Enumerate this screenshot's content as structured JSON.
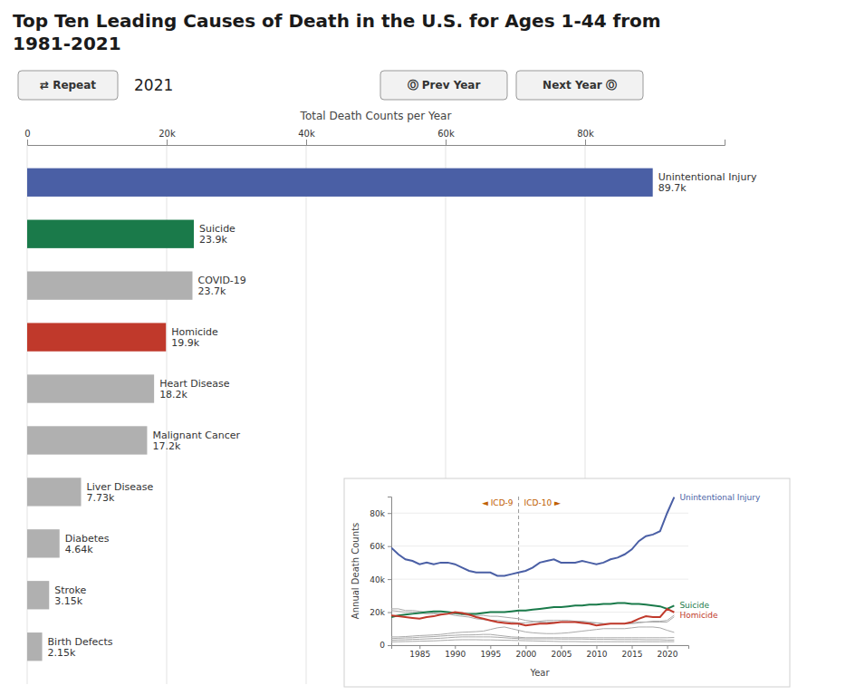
{
  "chart_data": [
    {
      "type": "bar",
      "orientation": "horizontal",
      "title": "Top Ten Leading Causes of Death in the U.S. for Ages 1-44 from\n1981-2021",
      "annotations": [
        "⇄  Repeat",
        "2021",
        "Ⓞ Prev Year",
        "Next Year Ⓞ"
      ],
      "xlabel": "Total Death Counts per Year",
      "categories": [
        "Unintentional Injury",
        "Suicide",
        "COVID-19",
        "Homicide",
        "Heart Disease",
        "Malignant Cancer",
        "Liver Disease",
        "Diabetes",
        "Stroke",
        "Birth Defects"
      ],
      "values": [
        89700,
        23900,
        23700,
        19900,
        18200,
        17200,
        7730,
        4640,
        3150,
        2150
      ],
      "value_labels": [
        "89.7k",
        "23.9k",
        "23.7k",
        "19.9k",
        "18.2k",
        "17.2k",
        "7.73k",
        "4.64k",
        "3.15k",
        "2.15k"
      ],
      "data_labels": true,
      "colors": [
        "#4a5fa5",
        "#1a7a4a",
        "#b0b0b0",
        "#c0392b",
        "#b0b0b0",
        "#b0b0b0",
        "#b0b0b0",
        "#b0b0b0",
        "#b0b0b0",
        "#b0b0b0"
      ],
      "xlim": [
        0,
        100000
      ],
      "xticks": [
        0,
        {
          "value": 20000,
          "label": "20k"
        },
        {
          "value": 40000,
          "label": "40k"
        },
        {
          "value": 60000,
          "label": "60k"
        },
        {
          "value": 80000,
          "label": "80k"
        }
      ],
      "grid": true,
      "tick_labels": "x"
    },
    {
      "type": "line",
      "xlabel": "Year",
      "ylabel": "Annual Death Counts",
      "x": [
        1981,
        1982,
        1983,
        1984,
        1985,
        1986,
        1987,
        1988,
        1989,
        1990,
        1991,
        1992,
        1993,
        1994,
        1995,
        1996,
        1997,
        1998,
        1999,
        2000,
        2001,
        2002,
        2003,
        2004,
        2005,
        2006,
        2007,
        2008,
        2009,
        2010,
        2011,
        2012,
        2013,
        2014,
        2015,
        2016,
        2017,
        2018,
        2019,
        2020,
        2021
      ],
      "series": [
        {
          "color": "#aaaaaa",
          "values": [
            22000,
            22000,
            21000,
            21000,
            20500,
            20000,
            19500,
            19000,
            19000,
            18000,
            17500,
            17000,
            16000,
            15500,
            15000,
            15000,
            14500,
            14000,
            13500,
            13500,
            14000,
            14500,
            15000,
            15000,
            15000,
            15000,
            14500,
            14500,
            14000,
            13500,
            13000,
            13000,
            13000,
            13000,
            13500,
            14000,
            14000,
            14500,
            14500,
            15000,
            18200
          ]
        },
        {
          "color": "#aaaaaa",
          "values": [
            21000,
            20500,
            20000,
            20000,
            19500,
            19000,
            19000,
            19000,
            19000,
            19000,
            18500,
            18000,
            18000,
            18000,
            17500,
            17500,
            17000,
            16500,
            16000,
            15000,
            14500,
            14000,
            14000,
            14000,
            14000,
            14000,
            14000,
            14000,
            13500,
            13500,
            13000,
            13000,
            13000,
            13000,
            13000,
            13500,
            14000,
            14000,
            14000,
            14000,
            17200
          ]
        },
        {
          "color": "#aaaaaa",
          "values": [
            5000,
            5000,
            5200,
            5500,
            5800,
            6000,
            6200,
            6500,
            7000,
            7500,
            7800,
            8000,
            8200,
            8500,
            9500,
            10500,
            11000,
            10000,
            9000,
            8000,
            7500,
            7200,
            7000,
            7000,
            7200,
            7500,
            8000,
            8500,
            9000,
            9500,
            10000,
            10000,
            10000,
            10000,
            10500,
            11000,
            11000,
            11000,
            10500,
            9000,
            7730
          ]
        },
        {
          "color": "#aaaaaa",
          "values": [
            4000,
            4200,
            4400,
            4500,
            4800,
            5000,
            5200,
            5500,
            5800,
            6000,
            6200,
            6200,
            6300,
            6500,
            6500,
            6000,
            5500,
            5000,
            4800,
            4500,
            4500,
            4500,
            4500,
            4500,
            4500,
            4500,
            4500,
            4500,
            4500,
            4500,
            4500,
            4500,
            4500,
            4500,
            4500,
            4500,
            4500,
            4500,
            4500,
            4500,
            4640
          ]
        },
        {
          "color": "#aaaaaa",
          "values": [
            3000,
            3200,
            3300,
            3500,
            3600,
            3800,
            4000,
            4200,
            4500,
            4800,
            5000,
            5000,
            5000,
            5000,
            5000,
            4800,
            4500,
            4200,
            4000,
            3800,
            3800,
            3800,
            3800,
            3800,
            3700,
            3700,
            3700,
            3700,
            3600,
            3500,
            3500,
            3500,
            3400,
            3400,
            3400,
            3400,
            3300,
            3300,
            3300,
            3100,
            3150
          ]
        },
        {
          "color": "#aaaaaa",
          "values": [
            2000,
            2100,
            2200,
            2300,
            2400,
            2500,
            2600,
            2800,
            3000,
            3200,
            3300,
            3300,
            3300,
            3200,
            3200,
            3100,
            3000,
            2900,
            2800,
            2700,
            2600,
            2500,
            2400,
            2300,
            2200,
            2200,
            2200,
            2100,
            2100,
            2100,
            2100,
            2100,
            2100,
            2100,
            2100,
            2100,
            2100,
            2100,
            2100,
            2100,
            2150
          ]
        },
        {
          "name": "Unintentional Injury",
          "color": "#4a5fa5",
          "values": [
            59000,
            55000,
            52000,
            51000,
            49000,
            50000,
            49000,
            50000,
            50000,
            49000,
            47000,
            45000,
            44000,
            44000,
            44000,
            42000,
            42000,
            43000,
            44000,
            45000,
            47000,
            50000,
            51000,
            52000,
            50000,
            50000,
            50000,
            51000,
            50000,
            49000,
            50000,
            52000,
            53000,
            55000,
            58000,
            63000,
            66000,
            67000,
            69000,
            80000,
            89700
          ]
        },
        {
          "name": "Suicide",
          "color": "#1a7a4a",
          "values": [
            17000,
            18000,
            18500,
            19000,
            19500,
            20000,
            20500,
            20500,
            20000,
            19500,
            19000,
            19000,
            19000,
            19500,
            20000,
            20000,
            20000,
            20500,
            21000,
            21000,
            21500,
            22000,
            22500,
            23000,
            23000,
            23500,
            24000,
            24000,
            24500,
            24500,
            25000,
            25000,
            25500,
            25500,
            25000,
            25000,
            24500,
            24000,
            23500,
            22000,
            23900
          ]
        },
        {
          "name": "Homicide",
          "color": "#c0392b",
          "values": [
            18000,
            17500,
            17000,
            16500,
            16000,
            17000,
            17500,
            18500,
            19000,
            20000,
            19500,
            18500,
            17000,
            16000,
            15000,
            14000,
            13500,
            13000,
            13000,
            12000,
            12500,
            13000,
            13000,
            13500,
            14000,
            14000,
            14000,
            13500,
            13000,
            12000,
            12500,
            13000,
            13000,
            13000,
            14000,
            16000,
            17500,
            17000,
            17000,
            22000,
            19900
          ]
        }
      ],
      "xlim": [
        1981,
        2023
      ],
      "xticks": [
        1985,
        1990,
        1995,
        2000,
        2005,
        2010,
        2015,
        2020
      ],
      "ylim": [
        0,
        90000
      ],
      "yticks": [
        0,
        {
          "value": 20000,
          "label": "20k"
        },
        {
          "value": 40000,
          "label": "40k"
        },
        {
          "value": 60000,
          "label": "60k"
        },
        {
          "value": 80000,
          "label": "80k"
        }
      ],
      "grid": true,
      "annotations": [
        {
          "text": "◄ ICD-9"
        },
        {
          "text": "ICD-10 ►"
        },
        {
          "x": 1999,
          "line_style": "dashed"
        }
      ]
    }
  ]
}
